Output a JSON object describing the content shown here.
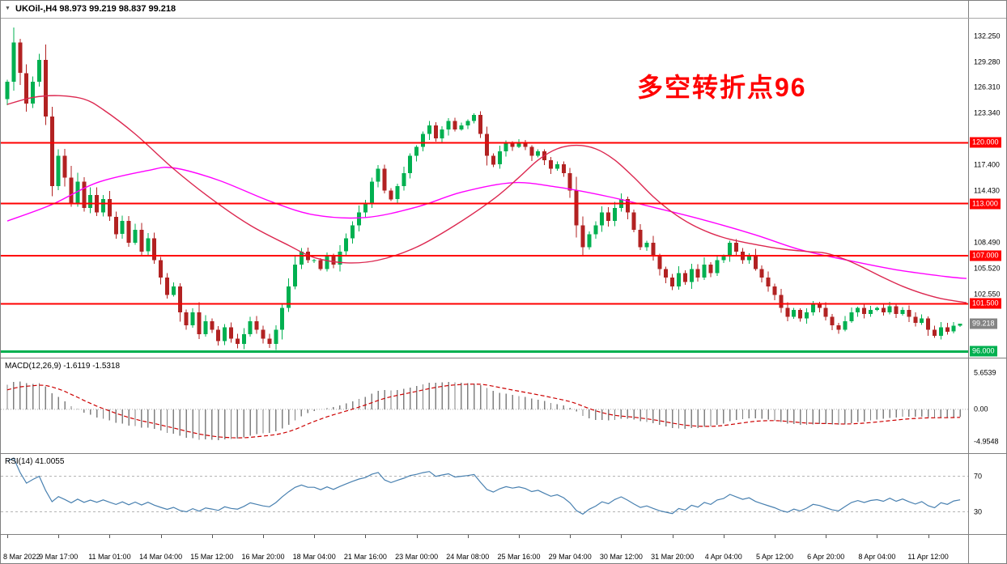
{
  "title": {
    "symbol_tf": "UKOil-,H4",
    "ohlc": "98.973 99.219 98.837 99.218"
  },
  "annotation": {
    "text": "多空转折点96"
  },
  "macd_panel": {
    "name": "MACD(12,26,9)",
    "values": "-1.6119 -1.5318",
    "axis_labels": [
      "5.6539",
      "0.00",
      "-4.9548"
    ]
  },
  "rsi_panel": {
    "name": "RSI(14)",
    "value": "41.0055",
    "levels": [
      70,
      30
    ],
    "axis_labels": [
      "70",
      "30"
    ]
  },
  "price_axis": {
    "labels": [
      {
        "price": 132.25,
        "label": "132.250"
      },
      {
        "price": 129.28,
        "label": "129.280"
      },
      {
        "price": 126.31,
        "label": "126.310"
      },
      {
        "price": 123.34,
        "label": "123.340"
      },
      {
        "price": 117.4,
        "label": "117.400"
      },
      {
        "price": 114.43,
        "label": "114.430"
      },
      {
        "price": 108.49,
        "label": "108.490"
      },
      {
        "price": 105.52,
        "label": "105.520"
      },
      {
        "price": 102.55,
        "label": "102.550"
      }
    ]
  },
  "hlines": {
    "resistance": [
      {
        "price": 120.0,
        "label": "120.000"
      },
      {
        "price": 113.0,
        "label": "113.000"
      },
      {
        "price": 107.0,
        "label": "107.000"
      },
      {
        "price": 101.5,
        "label": "101.500"
      }
    ],
    "support": {
      "price": 96.0,
      "label": "96.000"
    },
    "current": {
      "price": 99.218,
      "label": "99.218"
    }
  },
  "time_axis": {
    "candles_per_label": 8,
    "labels": [
      "8 Mar 2022",
      "9 Mar 17:00",
      "11 Mar 01:00",
      "14 Mar 04:00",
      "15 Mar 12:00",
      "16 Mar 20:00",
      "18 Mar 04:00",
      "21 Mar 16:00",
      "23 Mar 00:00",
      "24 Mar 08:00",
      "25 Mar 16:00",
      "29 Mar 04:00",
      "30 Mar 12:00",
      "31 Mar 20:00",
      "4 Apr 04:00",
      "5 Apr 12:00",
      "6 Apr 20:00",
      "8 Apr 04:00",
      "11 Apr 12:00"
    ]
  },
  "colors": {
    "bull": "#00B050",
    "bear": "#B22222",
    "ma_fast": "#DC2850",
    "ma_slow": "#FF00FF",
    "line_red": "#FF0000",
    "line_green": "#00B050",
    "macd_hist": "#808080",
    "macd_signal": "#CC0000",
    "rsi": "#4880B0",
    "badge_current": "#848484",
    "annotation": "#FF0000"
  },
  "chart_data": {
    "type": "candlestick",
    "symbol": "UKOil-",
    "timeframe": "H4",
    "title": "UKOil- H4 with MACD(12,26,9) and RSI(14)",
    "price_axis_range": [
      95.3,
      136.3
    ],
    "macd_display_range": [
      -4.9548,
      5.6539
    ],
    "rsi_display_range": [
      5,
      95
    ],
    "first_open": 125.0,
    "last_ohlc": {
      "open": 98.973,
      "high": 99.219,
      "low": 98.837,
      "close": 99.218
    },
    "closes": [
      127.0,
      131.5,
      128.0,
      124.5,
      127.0,
      129.5,
      123.0,
      115.0,
      118.5,
      116.0,
      113.0,
      115.5,
      112.5,
      114.0,
      112.0,
      113.5,
      111.5,
      109.5,
      111.0,
      108.5,
      110.0,
      107.5,
      109.0,
      106.5,
      104.5,
      102.5,
      103.5,
      100.5,
      99.0,
      100.5,
      98.0,
      99.5,
      98.5,
      97.2,
      98.8,
      97.5,
      96.9,
      98.0,
      99.5,
      98.5,
      97.5,
      96.9,
      98.5,
      101.0,
      103.5,
      106.0,
      107.5,
      106.5,
      106.5,
      105.5,
      107.0,
      106.0,
      107.5,
      109.0,
      110.5,
      112.0,
      113.0,
      115.5,
      117.0,
      114.5,
      113.5,
      115.0,
      116.5,
      118.5,
      119.5,
      121.0,
      122.0,
      120.5,
      121.5,
      122.5,
      121.5,
      122.0,
      122.5,
      123.2,
      121.0,
      118.5,
      117.5,
      119.0,
      120.0,
      119.5,
      120.0,
      119.5,
      118.5,
      119.0,
      118.0,
      117.0,
      117.5,
      116.5,
      114.5,
      110.5,
      108.0,
      109.5,
      110.5,
      112.0,
      111.0,
      112.5,
      113.5,
      112.0,
      110.0,
      108.0,
      108.5,
      107.0,
      105.5,
      104.5,
      103.5,
      105.0,
      104.0,
      105.5,
      104.5,
      106.0,
      105.0,
      106.5,
      107.0,
      108.5,
      107.5,
      106.5,
      107.0,
      105.5,
      104.5,
      103.5,
      102.5,
      101.0,
      100.0,
      100.8,
      99.8,
      100.5,
      101.5,
      101.0,
      100.0,
      99.0,
      98.5,
      99.5,
      100.5,
      101.0,
      100.3,
      100.8,
      101.0,
      100.5,
      101.2,
      100.3,
      100.8,
      100.0,
      99.3,
      99.8,
      98.5,
      97.8,
      98.8,
      98.3,
      98.973,
      99.218
    ],
    "pre_history_closes": [
      109.0,
      110.0,
      108.5,
      110.5,
      109.5,
      111.0,
      110.5,
      111.5,
      110.8,
      112.0,
      111.2,
      112.5,
      111.8,
      113.0,
      112.3,
      113.5,
      114.2,
      115.0,
      115.8,
      116.6,
      117.5,
      118.4,
      119.3,
      120.2,
      121.1,
      122.0,
      122.9,
      123.8,
      124.6,
      125.4
    ],
    "ma_slow_anchors": [
      [
        0,
        111.0
      ],
      [
        7,
        112.9
      ],
      [
        14,
        115.4
      ],
      [
        22,
        116.8
      ],
      [
        26,
        117.1
      ],
      [
        33,
        115.7
      ],
      [
        41,
        113.3
      ],
      [
        48,
        111.7
      ],
      [
        56,
        111.4
      ],
      [
        64,
        112.6
      ],
      [
        71,
        114.3
      ],
      [
        79,
        115.4
      ],
      [
        86,
        114.9
      ],
      [
        94,
        113.8
      ],
      [
        102,
        112.4
      ],
      [
        109,
        111.1
      ],
      [
        117,
        109.4
      ],
      [
        124,
        107.7
      ],
      [
        132,
        106.4
      ],
      [
        139,
        105.4
      ],
      [
        147,
        104.6
      ],
      [
        150,
        104.4
      ]
    ],
    "ma_fast_anchors": [
      [
        0,
        124.4
      ],
      [
        4,
        125.2
      ],
      [
        8,
        125.4
      ],
      [
        12,
        125.0
      ],
      [
        15,
        123.8
      ],
      [
        20,
        121.0
      ],
      [
        26,
        117.0
      ],
      [
        32,
        113.5
      ],
      [
        38,
        110.5
      ],
      [
        44,
        108.2
      ],
      [
        48,
        106.8
      ],
      [
        53,
        106.2
      ],
      [
        58,
        106.5
      ],
      [
        64,
        108.0
      ],
      [
        70,
        110.5
      ],
      [
        76,
        113.5
      ],
      [
        80,
        116.0
      ],
      [
        83,
        118.0
      ],
      [
        86,
        119.3
      ],
      [
        89,
        119.7
      ],
      [
        92,
        119.3
      ],
      [
        95,
        118.0
      ],
      [
        98,
        116.0
      ],
      [
        101,
        113.8
      ],
      [
        104,
        112.0
      ],
      [
        107,
        110.6
      ],
      [
        110,
        109.6
      ],
      [
        113,
        108.9
      ],
      [
        117,
        108.3
      ],
      [
        121,
        107.8
      ],
      [
        125,
        107.5
      ],
      [
        128,
        107.3
      ],
      [
        131,
        106.6
      ],
      [
        134,
        105.6
      ],
      [
        137,
        104.5
      ],
      [
        140,
        103.5
      ],
      [
        143,
        102.7
      ],
      [
        146,
        102.1
      ],
      [
        150,
        101.6
      ]
    ]
  }
}
